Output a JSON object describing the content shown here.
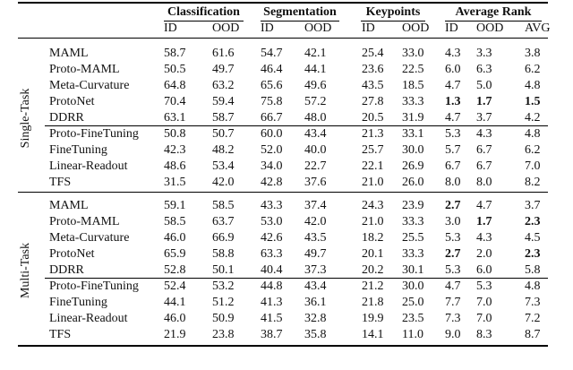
{
  "table": {
    "groups": [
      "Classification",
      "Segmentation",
      "Keypoints",
      "Average Rank"
    ],
    "subheaders": [
      "ID",
      "OOD",
      "ID",
      "OOD",
      "ID",
      "OOD",
      "ID",
      "OOD",
      "AVG"
    ],
    "sections": [
      {
        "label": "Single-Task",
        "blocks": [
          [
            {
              "method": "MAML",
              "cells": [
                "58.7",
                "61.6",
                "54.7",
                "42.1",
                "25.4",
                "33.0",
                "4.3",
                "3.3",
                "3.8"
              ]
            },
            {
              "method": "Proto-MAML",
              "cells": [
                "50.5",
                "49.7",
                "46.4",
                "44.1",
                "23.6",
                "22.5",
                "6.0",
                "6.3",
                "6.2"
              ]
            },
            {
              "method": "Meta-Curvature",
              "cells": [
                "64.8",
                "63.2",
                "65.6",
                "49.6",
                "43.5",
                "18.5",
                "4.7",
                "5.0",
                "4.8"
              ]
            },
            {
              "method": "ProtoNet",
              "cells": [
                "70.4",
                "59.4",
                "75.8",
                "57.2",
                "27.8",
                "33.3",
                "1.3",
                "1.7",
                "1.5"
              ],
              "bold": [
                6,
                7,
                8
              ]
            },
            {
              "method": "DDRR",
              "cells": [
                "63.1",
                "58.7",
                "66.7",
                "48.0",
                "20.5",
                "31.9",
                "4.7",
                "3.7",
                "4.2"
              ]
            }
          ],
          [
            {
              "method": "Proto-FineTuning",
              "cells": [
                "50.8",
                "50.7",
                "60.0",
                "43.4",
                "21.3",
                "33.1",
                "5.3",
                "4.3",
                "4.8"
              ]
            },
            {
              "method": "FineTuning",
              "cells": [
                "42.3",
                "48.2",
                "52.0",
                "40.0",
                "25.7",
                "30.0",
                "5.7",
                "6.7",
                "6.2"
              ]
            },
            {
              "method": "Linear-Readout",
              "cells": [
                "48.6",
                "53.4",
                "34.0",
                "22.7",
                "22.1",
                "26.9",
                "6.7",
                "6.7",
                "7.0"
              ]
            },
            {
              "method": "TFS",
              "cells": [
                "31.5",
                "42.0",
                "42.8",
                "37.6",
                "21.0",
                "26.0",
                "8.0",
                "8.0",
                "8.2"
              ]
            }
          ]
        ]
      },
      {
        "label": "Multi-Task",
        "blocks": [
          [
            {
              "method": "MAML",
              "cells": [
                "59.1",
                "58.5",
                "43.3",
                "37.4",
                "24.3",
                "23.9",
                "2.7",
                "4.7",
                "3.7"
              ],
              "bold": [
                6
              ]
            },
            {
              "method": "Proto-MAML",
              "cells": [
                "58.5",
                "63.7",
                "53.0",
                "42.0",
                "21.0",
                "33.3",
                "3.0",
                "1.7",
                "2.3"
              ],
              "bold": [
                7,
                8
              ]
            },
            {
              "method": "Meta-Curvature",
              "cells": [
                "46.0",
                "66.9",
                "42.6",
                "43.5",
                "18.2",
                "25.5",
                "5.3",
                "4.3",
                "4.5"
              ]
            },
            {
              "method": "ProtoNet",
              "cells": [
                "65.9",
                "58.8",
                "63.3",
                "49.7",
                "20.1",
                "33.3",
                "2.7",
                "2.0",
                "2.3"
              ],
              "bold": [
                6,
                8
              ]
            },
            {
              "method": "DDRR",
              "cells": [
                "52.8",
                "50.1",
                "40.4",
                "37.3",
                "20.2",
                "30.1",
                "5.3",
                "6.0",
                "5.8"
              ]
            }
          ],
          [
            {
              "method": "Proto-FineTuning",
              "cells": [
                "52.4",
                "53.2",
                "44.8",
                "43.4",
                "21.2",
                "30.0",
                "4.7",
                "5.3",
                "4.8"
              ]
            },
            {
              "method": "FineTuning",
              "cells": [
                "44.1",
                "51.2",
                "41.3",
                "36.1",
                "21.8",
                "25.0",
                "7.7",
                "7.0",
                "7.3"
              ]
            },
            {
              "method": "Linear-Readout",
              "cells": [
                "46.0",
                "50.9",
                "41.5",
                "32.8",
                "19.9",
                "23.5",
                "7.3",
                "7.0",
                "7.2"
              ]
            },
            {
              "method": "TFS",
              "cells": [
                "21.9",
                "23.8",
                "38.7",
                "35.8",
                "14.1",
                "11.0",
                "9.0",
                "8.3",
                "8.7"
              ]
            }
          ]
        ]
      }
    ]
  }
}
